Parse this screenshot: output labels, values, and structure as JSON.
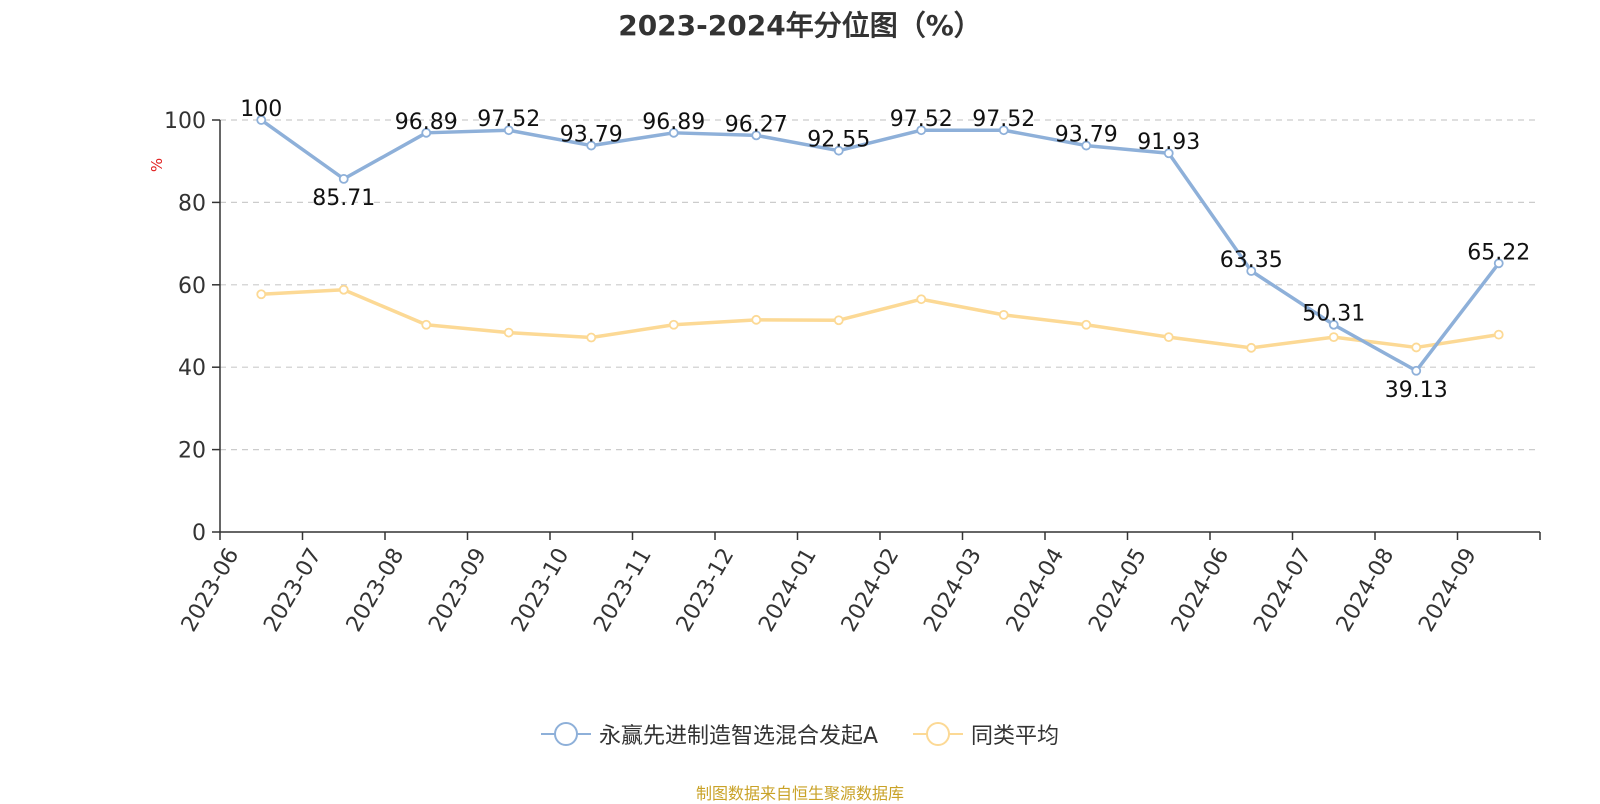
{
  "title": "2023-2024年分位图（%）",
  "source": "制图数据来自恒生聚源数据库",
  "chart_data": {
    "type": "line",
    "title": "2023-2024年分位图（%）",
    "ylabel": "%",
    "ylim": [
      0,
      100
    ],
    "yticks": [
      0,
      20,
      40,
      60,
      80,
      100
    ],
    "grid": true,
    "legend_position": "bottom",
    "categories": [
      "2023-06",
      "2023-07",
      "2023-08",
      "2023-09",
      "2023-10",
      "2023-11",
      "2023-12",
      "2024-01",
      "2024-02",
      "2024-03",
      "2024-04",
      "2024-05",
      "2024-06",
      "2024-07",
      "2024-08",
      "2024-09"
    ],
    "series": [
      {
        "name": "永赢先进制造智选混合发起A",
        "color": "#8eb0d9",
        "show_labels": true,
        "values": [
          100,
          85.71,
          96.89,
          97.52,
          93.79,
          96.89,
          96.27,
          92.55,
          97.52,
          97.52,
          93.79,
          91.93,
          63.35,
          50.31,
          39.13,
          65.22
        ]
      },
      {
        "name": "同类平均",
        "color": "#fcd995",
        "show_labels": false,
        "values": [
          57.7,
          58.8,
          50.3,
          48.4,
          47.2,
          50.3,
          51.5,
          51.4,
          56.5,
          52.7,
          50.3,
          47.3,
          44.7,
          47.3,
          44.8,
          47.9
        ]
      }
    ]
  }
}
